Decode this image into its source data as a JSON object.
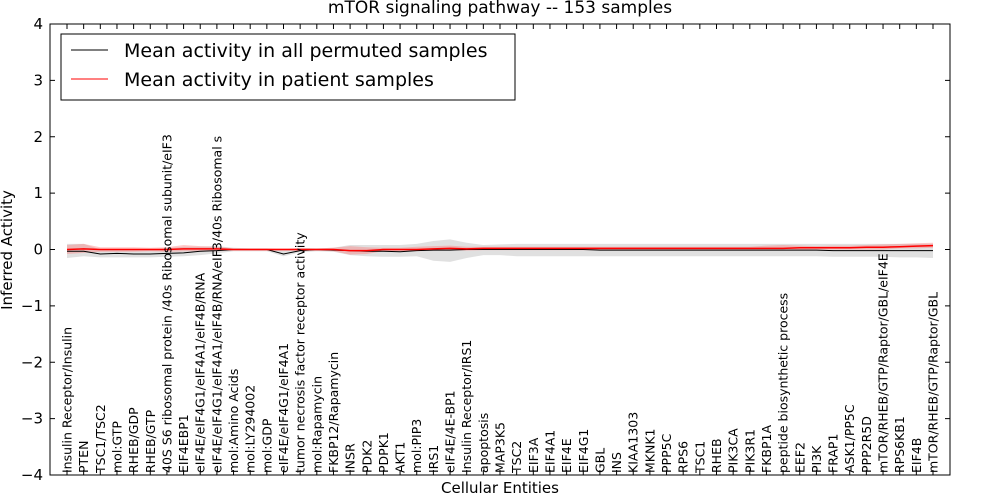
{
  "chart_data": {
    "type": "line",
    "title": "mTOR signaling pathway -- 153 samples",
    "xlabel": "Cellular Entities",
    "ylabel": "Inferred Activity",
    "ylim": [
      -4,
      4
    ],
    "yticks": [
      -4,
      -3,
      -2,
      -1,
      0,
      1,
      2,
      3,
      4
    ],
    "ytick_labels": [
      "−4",
      "−3",
      "−2",
      "−1",
      "0",
      "1",
      "2",
      "3",
      "4"
    ],
    "legend_position": "top-left",
    "categories": [
      "Insulin Receptor/Insulin",
      "PTEN",
      "TSC1/TSC2",
      "mol:GTP",
      "RHEB/GDP",
      "RHEB/GTP",
      "40S S6 ribosomal protein /40s Ribosomal subunit/eIF3",
      "EIF4EBP1",
      "eIF4E/eIF4G1/eIF4A1/eIF4B/RNA",
      "eIF4E/eIF4G1/eIF4A1/eIF4B/RNA/eIF3/40s Ribosomal s",
      "mol:Amino Acids",
      "mol:LY294002",
      "mol:GDP",
      "eIF4E/eIF4G1/eIF4A1",
      "tumor necrosis factor receptor activity",
      "mol:Rapamycin",
      "FKBP12/Rapamycin",
      "INSR",
      "PDK2",
      "PDPK1",
      "AKT1",
      "mol:PIP3",
      "IRS1",
      "eIF4E/4E-BP1",
      "Insulin Receptor/IRS1",
      "apoptosis",
      "MAP3K5",
      "TSC2",
      "EIF3A",
      "EIF4A1",
      "EIF4E",
      "EIF4G1",
      "GBL",
      "INS",
      "KIAA1303",
      "MKNK1",
      "PPP5C",
      "RPS6",
      "TSC1",
      "RHEB",
      "PIK3CA",
      "PIK3R1",
      "FKBP1A",
      "peptide biosynthetic process",
      "EEF2",
      "PI3K",
      "FRAP1",
      "ASK1/PP5C",
      "PPP2R5D",
      "mTOR/RHEB/GTP/Raptor/GBL/eIF4E",
      "RPS6KB1",
      "EIF4B",
      "mTOR/RHEB/GTP/Raptor/GBL"
    ],
    "series": [
      {
        "name": "Mean activity in all permuted samples",
        "color": "#000000",
        "values": [
          -0.03,
          -0.03,
          -0.08,
          -0.07,
          -0.08,
          -0.08,
          -0.07,
          -0.06,
          -0.03,
          -0.02,
          0.0,
          0.0,
          0.0,
          -0.08,
          -0.02,
          0.0,
          -0.01,
          -0.02,
          -0.03,
          -0.03,
          -0.04,
          -0.02,
          -0.01,
          -0.01,
          0.0,
          0.0,
          0.0,
          0.0,
          0.0,
          0.0,
          0.0,
          0.0,
          -0.01,
          -0.01,
          -0.01,
          -0.01,
          -0.01,
          -0.01,
          -0.01,
          -0.01,
          -0.01,
          -0.01,
          -0.01,
          -0.01,
          -0.01,
          -0.01,
          -0.02,
          -0.02,
          -0.02,
          -0.02,
          -0.02,
          -0.02,
          -0.02
        ],
        "band_lower": [
          -0.15,
          -0.12,
          -0.14,
          -0.14,
          -0.14,
          -0.14,
          -0.13,
          -0.12,
          -0.1,
          -0.07,
          -0.03,
          -0.03,
          -0.03,
          -0.12,
          -0.05,
          -0.03,
          -0.04,
          -0.1,
          -0.12,
          -0.13,
          -0.13,
          -0.12,
          -0.2,
          -0.22,
          -0.15,
          -0.1,
          -0.1,
          -0.12,
          -0.12,
          -0.12,
          -0.12,
          -0.12,
          -0.12,
          -0.12,
          -0.12,
          -0.12,
          -0.12,
          -0.12,
          -0.12,
          -0.12,
          -0.12,
          -0.12,
          -0.12,
          -0.12,
          -0.12,
          -0.12,
          -0.13,
          -0.13,
          -0.13,
          -0.13,
          -0.14,
          -0.14,
          -0.15
        ],
        "band_upper": [
          0.1,
          0.1,
          0.0,
          0.0,
          0.0,
          0.0,
          0.02,
          0.05,
          0.05,
          0.06,
          0.03,
          0.02,
          0.02,
          0.0,
          0.03,
          0.02,
          0.03,
          0.08,
          0.08,
          0.08,
          0.08,
          0.1,
          0.15,
          0.18,
          0.12,
          0.08,
          0.09,
          0.1,
          0.1,
          0.1,
          0.1,
          0.1,
          0.1,
          0.1,
          0.1,
          0.1,
          0.1,
          0.1,
          0.1,
          0.1,
          0.1,
          0.1,
          0.1,
          0.1,
          0.1,
          0.1,
          0.1,
          0.1,
          0.1,
          0.1,
          0.1,
          0.1,
          0.1
        ]
      },
      {
        "name": "Mean activity in patient samples",
        "color": "#ff0000",
        "values": [
          0.0,
          0.01,
          0.0,
          0.0,
          0.0,
          0.0,
          0.0,
          0.01,
          0.01,
          0.01,
          0.0,
          0.0,
          0.0,
          0.0,
          0.0,
          0.0,
          0.0,
          -0.02,
          -0.02,
          0.0,
          0.0,
          0.0,
          0.01,
          0.02,
          0.01,
          0.02,
          0.02,
          0.02,
          0.02,
          0.02,
          0.02,
          0.02,
          0.02,
          0.02,
          0.02,
          0.02,
          0.02,
          0.02,
          0.02,
          0.02,
          0.02,
          0.02,
          0.02,
          0.02,
          0.03,
          0.03,
          0.03,
          0.03,
          0.04,
          0.04,
          0.05,
          0.06,
          0.07
        ],
        "band_lower": [
          -0.08,
          -0.06,
          -0.04,
          -0.04,
          -0.04,
          -0.03,
          -0.04,
          -0.03,
          -0.03,
          -0.03,
          -0.02,
          -0.02,
          -0.02,
          -0.02,
          -0.02,
          -0.02,
          -0.03,
          -0.09,
          -0.08,
          -0.03,
          -0.03,
          -0.02,
          -0.02,
          -0.01,
          -0.02,
          -0.01,
          -0.01,
          -0.01,
          -0.01,
          -0.01,
          -0.01,
          -0.01,
          -0.01,
          -0.01,
          -0.01,
          -0.01,
          -0.01,
          -0.01,
          -0.01,
          -0.01,
          -0.01,
          -0.01,
          0.0,
          0.0,
          -0.01,
          0.0,
          0.0,
          0.0,
          0.0,
          0.0,
          0.02,
          0.02,
          0.03
        ],
        "band_upper": [
          0.08,
          0.1,
          0.04,
          0.04,
          0.04,
          0.03,
          0.04,
          0.08,
          0.06,
          0.05,
          0.02,
          0.02,
          0.02,
          0.02,
          0.02,
          0.02,
          0.03,
          0.06,
          0.04,
          0.03,
          0.03,
          0.05,
          0.06,
          0.07,
          0.05,
          0.05,
          0.05,
          0.05,
          0.05,
          0.05,
          0.05,
          0.05,
          0.05,
          0.05,
          0.05,
          0.05,
          0.05,
          0.05,
          0.05,
          0.05,
          0.05,
          0.05,
          0.07,
          0.08,
          0.07,
          0.06,
          0.07,
          0.07,
          0.08,
          0.09,
          0.1,
          0.11,
          0.12
        ]
      }
    ]
  }
}
